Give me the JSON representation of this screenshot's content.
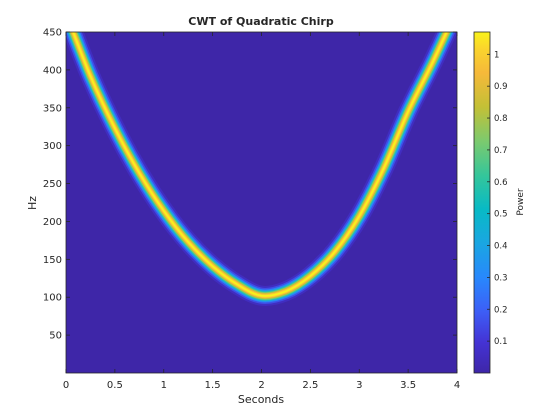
{
  "chart_data": {
    "type": "heatmap",
    "title": "CWT of Quadratic Chirp",
    "xlabel": "Seconds",
    "ylabel": "Hz",
    "colorbar_label": "Power",
    "xlim": [
      0,
      4
    ],
    "ylim": [
      0,
      450
    ],
    "x_ticks": [
      0,
      0.5,
      1,
      1.5,
      2,
      2.5,
      3,
      3.5,
      4
    ],
    "x_tick_labels": [
      "0",
      "0.5",
      "1",
      "1.5",
      "2",
      "2.5",
      "3",
      "3.5",
      "4"
    ],
    "y_ticks": [
      50,
      100,
      150,
      200,
      250,
      300,
      350,
      400,
      450
    ],
    "y_tick_labels": [
      "50",
      "100",
      "150",
      "200",
      "250",
      "300",
      "350",
      "400",
      "450"
    ],
    "colorbar_range": [
      0,
      1.07
    ],
    "colorbar_ticks": [
      0.1,
      0.2,
      0.3,
      0.4,
      0.5,
      0.6,
      0.7,
      0.8,
      0.9,
      1
    ],
    "colorbar_tick_labels": [
      "0.1",
      "0.2",
      "0.3",
      "0.4",
      "0.5",
      "0.6",
      "0.7",
      "0.8",
      "0.9",
      "1"
    ],
    "colormap": "parula",
    "background_power": 0,
    "ridge": {
      "description": "instantaneous frequency of quadratic chirp",
      "t": [
        0,
        0.25,
        0.5,
        0.75,
        1.0,
        1.25,
        1.5,
        1.75,
        2.0,
        2.25,
        2.5,
        2.75,
        3.0,
        3.25,
        3.5,
        3.75,
        4.0
      ],
      "hz": [
        475,
        392,
        323,
        264,
        214,
        173,
        141,
        117,
        102,
        108,
        128,
        160,
        207,
        270,
        345,
        410,
        480
      ],
      "peak_power": 1.05
    },
    "grid": false,
    "colors": {
      "background": "#3e26a8",
      "ridge_center": "#f9f21b"
    }
  }
}
